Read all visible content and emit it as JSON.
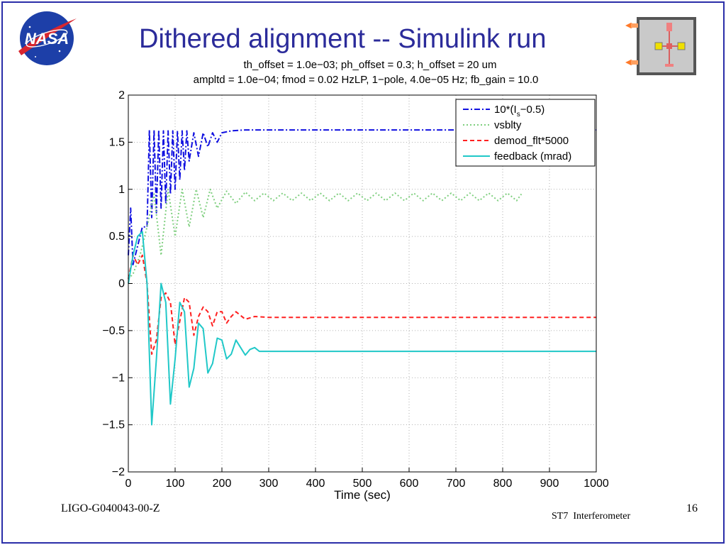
{
  "slide": {
    "title": "Dithered alignment -- Simulink run",
    "footer_left": "LIGO-G040043-00-Z",
    "footer_center": "ST7  Interferometer",
    "page_number": "16"
  },
  "logo": {
    "text": "NASA",
    "icon": "nasa-meatball-icon"
  },
  "colors": {
    "title": "#2b2b9a",
    "frame": "#2a2ea8",
    "series": [
      "#1010e0",
      "#7fcf7f",
      "#ff2020",
      "#20c8c8"
    ]
  },
  "chart_data": {
    "type": "line",
    "title_lines": [
      "th_offset = 1.0e−03; ph_offset = 0.3; h_offset = 20 um",
      "ampltd = 1.0e−04; fmod = 0.02 HzLP, 1−pole, 4.0e−05 Hz; fb_gain = 10.0"
    ],
    "xlabel": "Time (sec)",
    "ylabel": "",
    "xlim": [
      0,
      1000
    ],
    "ylim": [
      -2,
      2
    ],
    "xticks": [
      0,
      100,
      200,
      300,
      400,
      500,
      600,
      700,
      800,
      900,
      1000
    ],
    "yticks": [
      2,
      1.5,
      1,
      0.5,
      0,
      -0.5,
      -1,
      -1.5,
      -2
    ],
    "ytick_labels": [
      "2",
      "1.5",
      "1",
      "0.5",
      "0",
      "−0.5",
      "−1",
      "−1.5",
      "−2"
    ],
    "grid": true,
    "legend_position": "top-right",
    "series": [
      {
        "name": "10*(I_s−0.5)",
        "legend_main": "10*(I",
        "legend_sub": "s",
        "legend_tail": "−0.5)",
        "style": "dash-dot",
        "x": [
          0,
          5,
          10,
          20,
          30,
          40,
          45,
          50,
          55,
          60,
          65,
          70,
          75,
          80,
          85,
          90,
          95,
          100,
          105,
          110,
          115,
          120,
          125,
          130,
          140,
          150,
          160,
          170,
          180,
          190,
          200,
          220,
          250,
          300,
          400,
          500,
          600,
          700,
          800,
          900,
          1000
        ],
        "y": [
          0.3,
          0.8,
          0.2,
          0.4,
          0.6,
          0.6,
          1.63,
          0.7,
          1.63,
          0.75,
          1.63,
          0.8,
          1.62,
          0.85,
          1.62,
          0.95,
          1.62,
          1.0,
          1.62,
          1.1,
          1.62,
          1.2,
          1.62,
          1.3,
          1.6,
          1.35,
          1.6,
          1.45,
          1.6,
          1.5,
          1.6,
          1.62,
          1.63,
          1.63,
          1.63,
          1.63,
          1.63,
          1.63,
          1.63,
          1.63,
          1.63
        ]
      },
      {
        "name": "vsblty",
        "style": "dotted",
        "x": [
          0,
          10,
          25,
          40,
          55,
          70,
          85,
          100,
          115,
          130,
          145,
          160,
          175,
          190,
          210,
          230,
          250,
          270,
          290,
          310,
          330,
          350,
          370,
          390,
          410,
          430,
          450,
          470,
          490,
          510,
          530,
          550,
          570,
          590,
          610,
          630,
          650,
          670,
          690,
          710,
          730,
          750,
          770,
          790,
          810,
          830,
          840
        ],
        "y": [
          0.05,
          0.1,
          0.3,
          0.6,
          0.95,
          0.3,
          1.0,
          0.5,
          1.0,
          0.6,
          1.0,
          0.7,
          1.0,
          0.8,
          0.98,
          0.85,
          0.97,
          0.88,
          0.96,
          0.88,
          0.96,
          0.88,
          0.96,
          0.88,
          0.96,
          0.88,
          0.96,
          0.88,
          0.96,
          0.88,
          0.96,
          0.88,
          0.96,
          0.88,
          0.96,
          0.88,
          0.96,
          0.88,
          0.96,
          0.88,
          0.96,
          0.88,
          0.96,
          0.88,
          0.96,
          0.88,
          0.95
        ]
      },
      {
        "name": "demod_flt*5000",
        "style": "dashed",
        "x": [
          0,
          10,
          20,
          30,
          40,
          50,
          60,
          70,
          80,
          90,
          100,
          110,
          120,
          130,
          140,
          150,
          160,
          170,
          180,
          190,
          200,
          210,
          220,
          230,
          250,
          270,
          300,
          400,
          500,
          600,
          700,
          800,
          900,
          1000
        ],
        "y": [
          0.05,
          0.3,
          0.2,
          0.3,
          0.0,
          -0.75,
          -0.6,
          -0.15,
          -0.1,
          -0.2,
          -0.65,
          -0.4,
          -0.15,
          -0.2,
          -0.55,
          -0.35,
          -0.25,
          -0.3,
          -0.45,
          -0.3,
          -0.3,
          -0.42,
          -0.35,
          -0.3,
          -0.38,
          -0.35,
          -0.36,
          -0.36,
          -0.36,
          -0.36,
          -0.36,
          -0.36,
          -0.36,
          -0.36
        ]
      },
      {
        "name": "feedback (mrad)",
        "style": "solid",
        "x": [
          0,
          10,
          20,
          30,
          40,
          50,
          60,
          70,
          80,
          90,
          100,
          110,
          120,
          130,
          140,
          150,
          160,
          170,
          180,
          190,
          200,
          210,
          220,
          230,
          240,
          250,
          260,
          270,
          280,
          300,
          400,
          500,
          600,
          700,
          800,
          900,
          1000
        ],
        "y": [
          0.0,
          0.3,
          0.5,
          0.55,
          0.0,
          -1.5,
          -0.8,
          0.0,
          -0.2,
          -1.28,
          -0.8,
          -0.2,
          -0.3,
          -1.1,
          -0.9,
          -0.42,
          -0.48,
          -0.95,
          -0.85,
          -0.58,
          -0.6,
          -0.8,
          -0.75,
          -0.6,
          -0.68,
          -0.76,
          -0.7,
          -0.68,
          -0.72,
          -0.72,
          -0.72,
          -0.72,
          -0.72,
          -0.72,
          -0.72,
          -0.72,
          -0.72
        ]
      }
    ]
  }
}
